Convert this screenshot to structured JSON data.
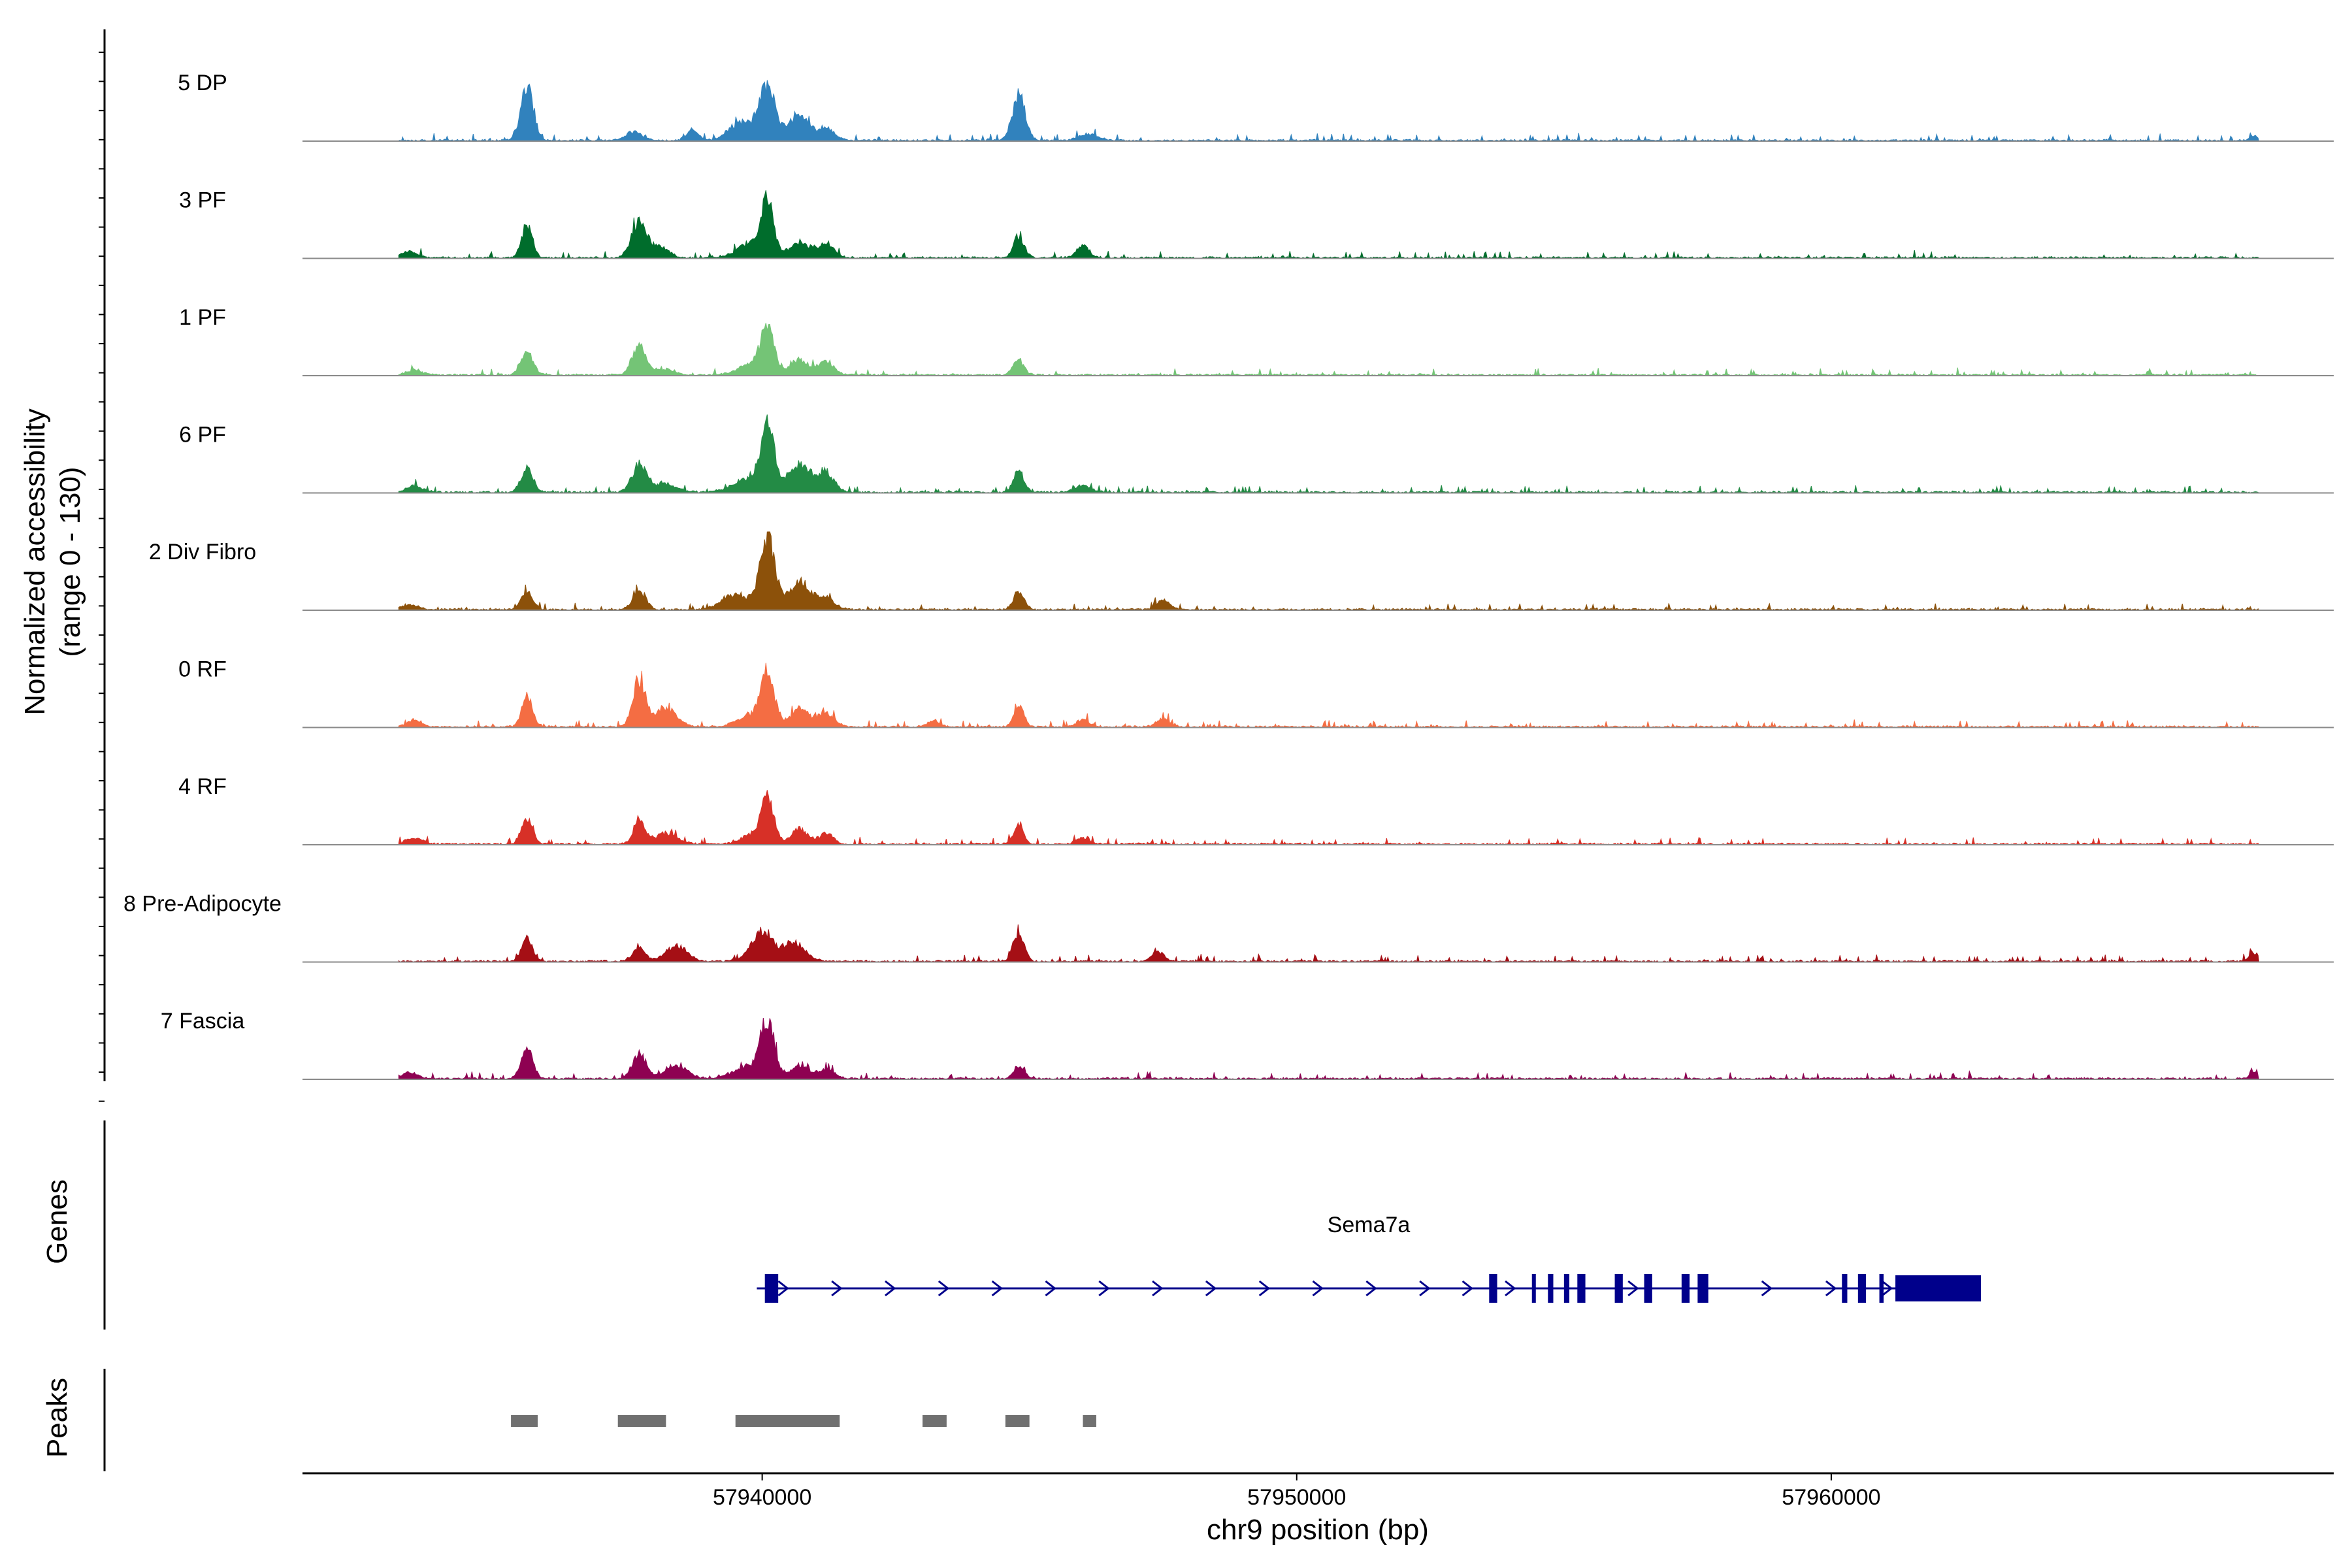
{
  "chart_data": {
    "type": "area",
    "title": "",
    "xlabel": "chr9 position (bp)",
    "ylabel": "Normalized accessibility",
    "ylabel_range": "(range 0 - 130)",
    "ylim": [
      0,
      130
    ],
    "xlim": [
      57931400,
      57969400
    ],
    "x_ticks": [
      57940000,
      57950000,
      57960000
    ],
    "x_tick_labels": [
      "57940000",
      "57950000",
      "57960000"
    ],
    "grid": false,
    "signal_start": 57933200,
    "signal_end": 57968000,
    "tracks": [
      {
        "name": "5 DP",
        "color": "#3182bd",
        "peaks": [
          [
            57935600,
            85,
            120
          ],
          [
            57937600,
            14,
            150
          ],
          [
            57938700,
            18,
            110
          ],
          [
            57939600,
            30,
            220
          ],
          [
            57940100,
            95,
            150
          ],
          [
            57940700,
            45,
            180
          ],
          [
            57941200,
            18,
            150
          ],
          [
            57944800,
            75,
            120
          ],
          [
            57946100,
            10,
            180
          ],
          [
            57967900,
            8,
            80
          ]
        ]
      },
      {
        "name": "3 PF",
        "color": "#006d2c",
        "peaks": [
          [
            57933400,
            10,
            150
          ],
          [
            57935600,
            55,
            100
          ],
          [
            57937700,
            60,
            140
          ],
          [
            57938100,
            18,
            150
          ],
          [
            57939800,
            25,
            250
          ],
          [
            57940100,
            90,
            110
          ],
          [
            57940700,
            25,
            200
          ],
          [
            57941200,
            22,
            150
          ],
          [
            57944800,
            35,
            100
          ],
          [
            57946000,
            20,
            120
          ]
        ]
      },
      {
        "name": "1 PF",
        "color": "#74c476",
        "peaks": [
          [
            57933500,
            8,
            150
          ],
          [
            57935600,
            40,
            110
          ],
          [
            57937700,
            50,
            130
          ],
          [
            57938200,
            10,
            150
          ],
          [
            57939800,
            18,
            250
          ],
          [
            57940100,
            80,
            120
          ],
          [
            57940700,
            25,
            180
          ],
          [
            57941200,
            22,
            140
          ],
          [
            57944800,
            25,
            100
          ]
        ]
      },
      {
        "name": "6 PF",
        "color": "#238b45",
        "peaks": [
          [
            57933500,
            10,
            150
          ],
          [
            57935600,
            40,
            110
          ],
          [
            57937700,
            45,
            140
          ],
          [
            57938200,
            15,
            200
          ],
          [
            57939800,
            25,
            300
          ],
          [
            57940100,
            100,
            120
          ],
          [
            57940700,
            45,
            220
          ],
          [
            57941200,
            30,
            150
          ],
          [
            57944800,
            35,
            100
          ],
          [
            57946000,
            12,
            150
          ]
        ]
      },
      {
        "name": "2 Div Fibro",
        "color": "#8c510a",
        "peaks": [
          [
            57933400,
            8,
            150
          ],
          [
            57935600,
            30,
            110
          ],
          [
            57937700,
            30,
            120
          ],
          [
            57939500,
            25,
            250
          ],
          [
            57940100,
            120,
            140
          ],
          [
            57940700,
            45,
            200
          ],
          [
            57941200,
            20,
            150
          ],
          [
            57944800,
            30,
            100
          ],
          [
            57947500,
            15,
            120
          ]
        ]
      },
      {
        "name": "0 RF",
        "color": "#f46d43",
        "peaks": [
          [
            57933500,
            12,
            120
          ],
          [
            57935600,
            50,
            100
          ],
          [
            57937700,
            75,
            120
          ],
          [
            57938200,
            30,
            200
          ],
          [
            57939800,
            20,
            250
          ],
          [
            57940100,
            85,
            120
          ],
          [
            57940700,
            30,
            180
          ],
          [
            57941200,
            22,
            150
          ],
          [
            57943200,
            10,
            120
          ],
          [
            57944800,
            35,
            90
          ],
          [
            57946000,
            12,
            120
          ],
          [
            57947500,
            14,
            120
          ]
        ]
      },
      {
        "name": "4 RF",
        "color": "#d73027",
        "peaks": [
          [
            57933500,
            10,
            150
          ],
          [
            57935600,
            45,
            100
          ],
          [
            57937700,
            38,
            110
          ],
          [
            57938200,
            18,
            200
          ],
          [
            57939800,
            15,
            200
          ],
          [
            57940100,
            75,
            120
          ],
          [
            57940700,
            25,
            160
          ],
          [
            57941200,
            18,
            120
          ],
          [
            57944800,
            35,
            90
          ],
          [
            57946000,
            10,
            120
          ]
        ]
      },
      {
        "name": "8 Pre-Adipocyte",
        "color": "#a50f15",
        "peaks": [
          [
            57935600,
            40,
            100
          ],
          [
            57937700,
            22,
            120
          ],
          [
            57938400,
            25,
            200
          ],
          [
            57940000,
            50,
            200
          ],
          [
            57940600,
            30,
            200
          ],
          [
            57944800,
            50,
            100
          ],
          [
            57947400,
            15,
            120
          ],
          [
            57967900,
            15,
            80
          ]
        ]
      },
      {
        "name": "7 Fascia",
        "color": "#8e0152",
        "peaks": [
          [
            57933400,
            10,
            150
          ],
          [
            57935600,
            50,
            110
          ],
          [
            57937700,
            42,
            130
          ],
          [
            57938400,
            22,
            200
          ],
          [
            57939700,
            20,
            250
          ],
          [
            57940100,
            95,
            130
          ],
          [
            57940700,
            20,
            180
          ],
          [
            57941200,
            15,
            150
          ],
          [
            57944800,
            20,
            100
          ],
          [
            57967900,
            10,
            80
          ]
        ]
      }
    ],
    "gene_track": {
      "label": "Genes",
      "gene_name": "Sema7a",
      "gene_start": 57939900,
      "gene_end": 57962800,
      "exons": [
        [
          57940050,
          57940300
        ],
        [
          57953600,
          57953750
        ],
        [
          57954400,
          57954450
        ],
        [
          57954700,
          57954800
        ],
        [
          57955000,
          57955100
        ],
        [
          57955250,
          57955400
        ],
        [
          57955950,
          57956100
        ],
        [
          57956500,
          57956650
        ],
        [
          57957200,
          57957350
        ],
        [
          57957500,
          57957700
        ],
        [
          57960200,
          57960300
        ],
        [
          57960500,
          57960650
        ],
        [
          57960900,
          57960980
        ],
        [
          57961200,
          57962800
        ]
      ],
      "arrows": [
        57940400,
        57941400,
        57942400,
        57943400,
        57944400,
        57945400,
        57946400,
        57947400,
        57948400,
        57949400,
        57950400,
        57951400,
        57952400,
        57953200,
        57954000,
        57956300,
        57958800,
        57960000,
        57961050
      ]
    },
    "peak_track": {
      "label": "Peaks",
      "regions": [
        [
          57935300,
          57935800
        ],
        [
          57937300,
          57938200
        ],
        [
          57939500,
          57941450
        ],
        [
          57943000,
          57943450
        ],
        [
          57944550,
          57945000
        ],
        [
          57946000,
          57946250
        ]
      ]
    }
  }
}
